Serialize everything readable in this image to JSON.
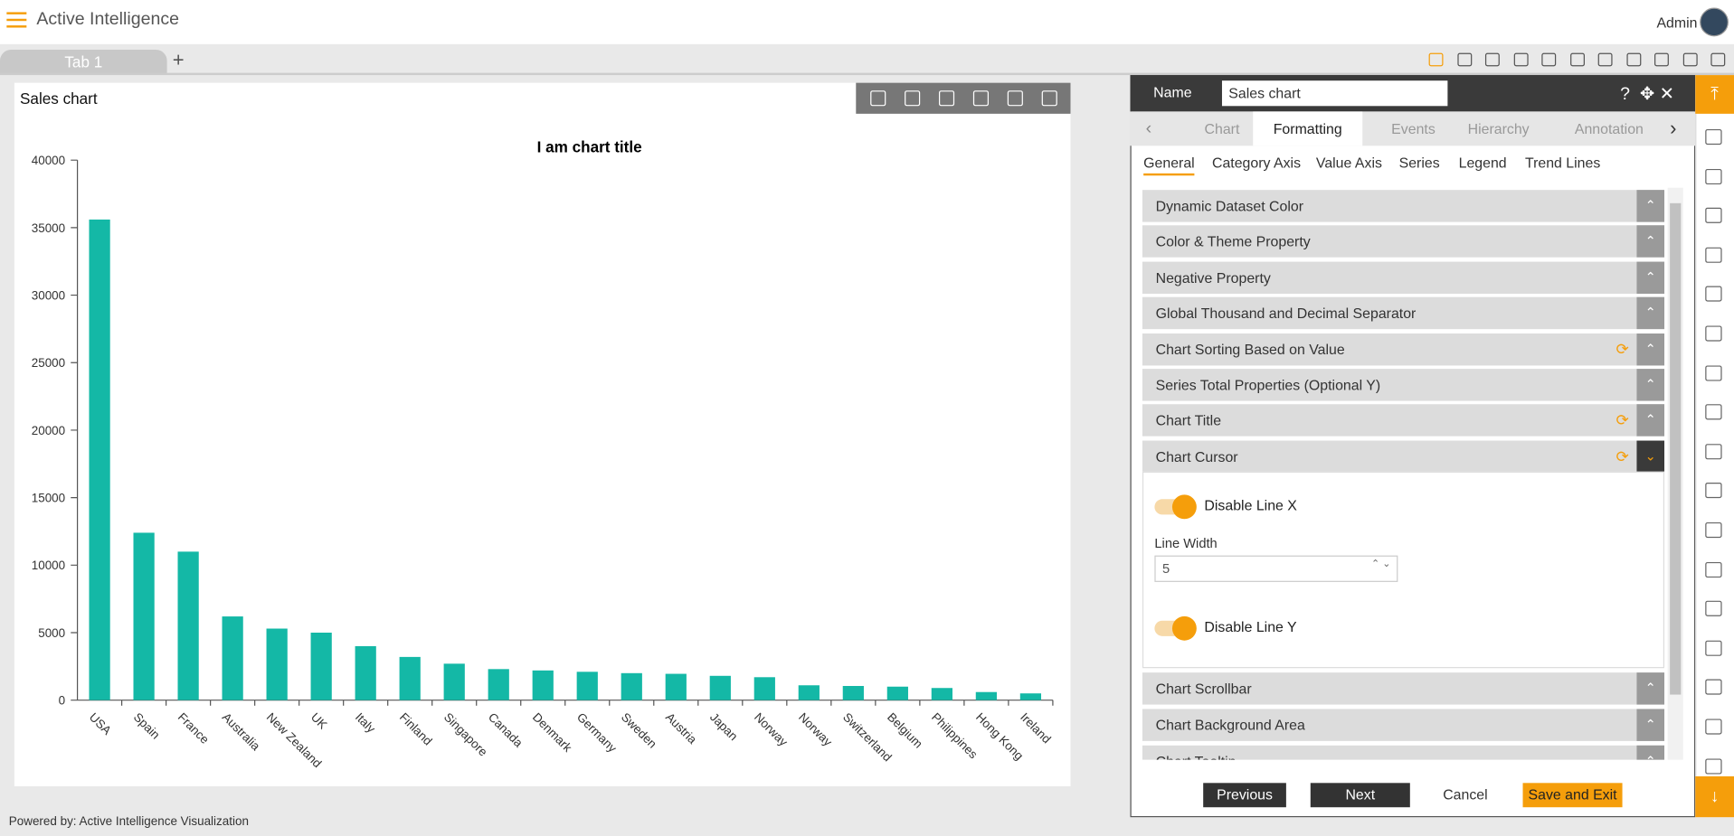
{
  "header": {
    "app_title": "Active Intelligence",
    "user": "Admin"
  },
  "tabs": [
    "Tab 1"
  ],
  "widget": {
    "title": "Sales chart"
  },
  "chart_data": {
    "type": "bar",
    "title": "I am chart title",
    "categories": [
      "USA",
      "Spain",
      "France",
      "Australia",
      "New Zealand",
      "UK",
      "Italy",
      "Finland",
      "Singapore",
      "Canada",
      "Denmark",
      "Germany",
      "Sweden",
      "Austria",
      "Japan",
      "Norway",
      "Norway",
      "Switzerland",
      "Belgium",
      "Philippines",
      "Hong Kong",
      "Ireland"
    ],
    "values": [
      35600,
      12400,
      11000,
      6200,
      5300,
      5000,
      4000,
      3200,
      2700,
      2300,
      2200,
      2100,
      2000,
      1950,
      1800,
      1700,
      1100,
      1050,
      1000,
      900,
      600,
      500
    ],
    "color": "#14b8a6",
    "ylim": [
      0,
      40000
    ],
    "yticks": [
      0,
      5000,
      10000,
      15000,
      20000,
      25000,
      30000,
      35000,
      40000
    ]
  },
  "panel": {
    "name_label": "Name",
    "name_value": "Sales chart",
    "tabs": [
      "Chart",
      "Formatting",
      "Events",
      "Hierarchy",
      "Annotation"
    ],
    "subtabs": [
      "General",
      "Category Axis",
      "Value Axis",
      "Series",
      "Legend",
      "Trend Lines"
    ],
    "sections": [
      {
        "name": "Dynamic Dataset Color",
        "refresh": false
      },
      {
        "name": "Color & Theme Property",
        "refresh": false
      },
      {
        "name": "Negative Property",
        "refresh": false
      },
      {
        "name": "Global Thousand and Decimal Separator",
        "refresh": false
      },
      {
        "name": "Chart Sorting Based on Value",
        "refresh": true
      },
      {
        "name": "Series Total Properties (Optional Y)",
        "refresh": false
      },
      {
        "name": "Chart Title",
        "refresh": true
      },
      {
        "name": "Chart Cursor",
        "refresh": true
      }
    ],
    "cursor": {
      "toggle_x": "Disable Line X",
      "line_width_label": "Line Width",
      "line_width_value": 5,
      "toggle_y": "Disable Line Y"
    },
    "sections_after": [
      {
        "name": "Chart Scrollbar",
        "refresh": false
      },
      {
        "name": "Chart Background Area",
        "refresh": false
      },
      {
        "name": "Chart Tooltip",
        "refresh": false
      }
    ],
    "buttons": [
      "Previous",
      "Next",
      "Cancel",
      "Save and Exit"
    ]
  },
  "footer": "Powered by: Active Intelligence Visualization"
}
